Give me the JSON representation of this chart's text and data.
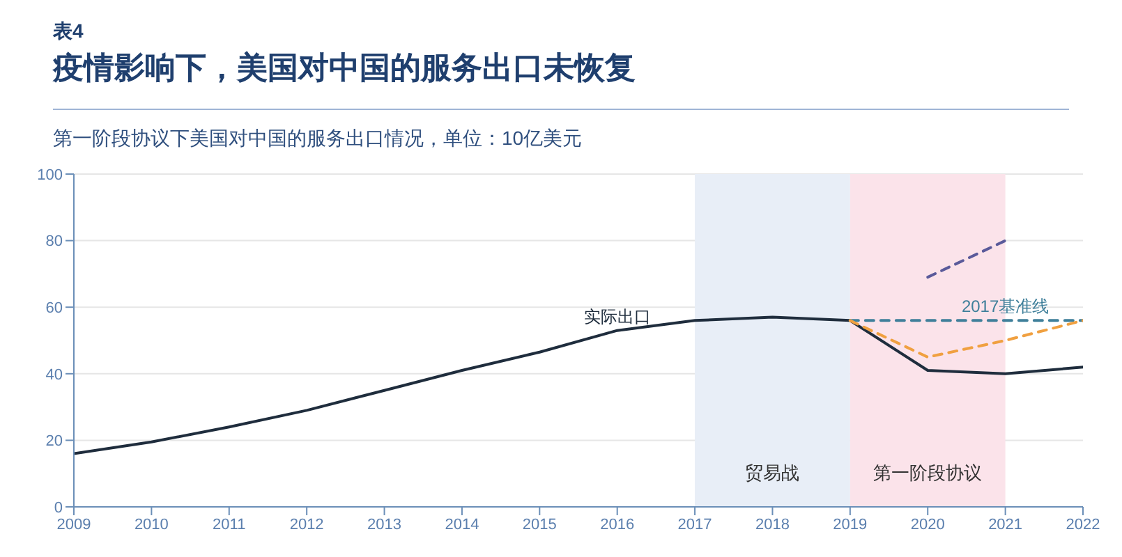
{
  "chart_data": {
    "type": "line",
    "title": "疫情影响下，美国对中国的服务出口未恢复",
    "subtitle": "第一阶段协议下美国对中国的服务出口情况，单位：10亿美元",
    "annotations": [
      "表4"
    ],
    "series": [
      {
        "name": "实际出口",
        "color": "#1f2d3d",
        "x": [
          2009,
          2010,
          2011,
          2012,
          2013,
          2014,
          2015,
          2016,
          2017,
          2018,
          2019,
          2020,
          2021,
          2022
        ],
        "values": [
          16,
          19.5,
          24,
          29,
          35,
          41,
          46.5,
          53,
          56,
          57,
          56,
          41,
          40,
          42
        ],
        "line_style": "solid"
      },
      {
        "name": "2017基准线",
        "color": "#3f7f9a",
        "x": [
          2019,
          2020,
          2021,
          2022
        ],
        "values": [
          56,
          56,
          56,
          56
        ],
        "line_style": "dashed"
      },
      {
        "color": "#f0a040",
        "x": [
          2019,
          2020,
          2021,
          2022
        ],
        "values": [
          56,
          45,
          50,
          56
        ],
        "line_style": "dashed"
      },
      {
        "color": "#5a5a9a",
        "x": [
          2020,
          2021
        ],
        "values": [
          69,
          80
        ],
        "line_style": "dashed"
      }
    ],
    "xlim": [
      2009,
      2022
    ],
    "xticks": [
      2009,
      2010,
      2011,
      2012,
      2013,
      2014,
      2015,
      2016,
      2017,
      2018,
      2019,
      2020,
      2021,
      2022
    ],
    "ylim": [
      0,
      100
    ],
    "yticks": [
      0,
      20,
      40,
      60,
      80,
      100
    ],
    "grid": "y",
    "legend": false,
    "marker": "none",
    "bands": [
      {
        "axis": "x",
        "from": 2017,
        "to": 2019,
        "label": "贸易战",
        "color": "#e8eef7"
      },
      {
        "axis": "x",
        "from": 2019,
        "to": 2021,
        "label": "第一阶段协议",
        "color": "#fbe3ea"
      }
    ]
  }
}
